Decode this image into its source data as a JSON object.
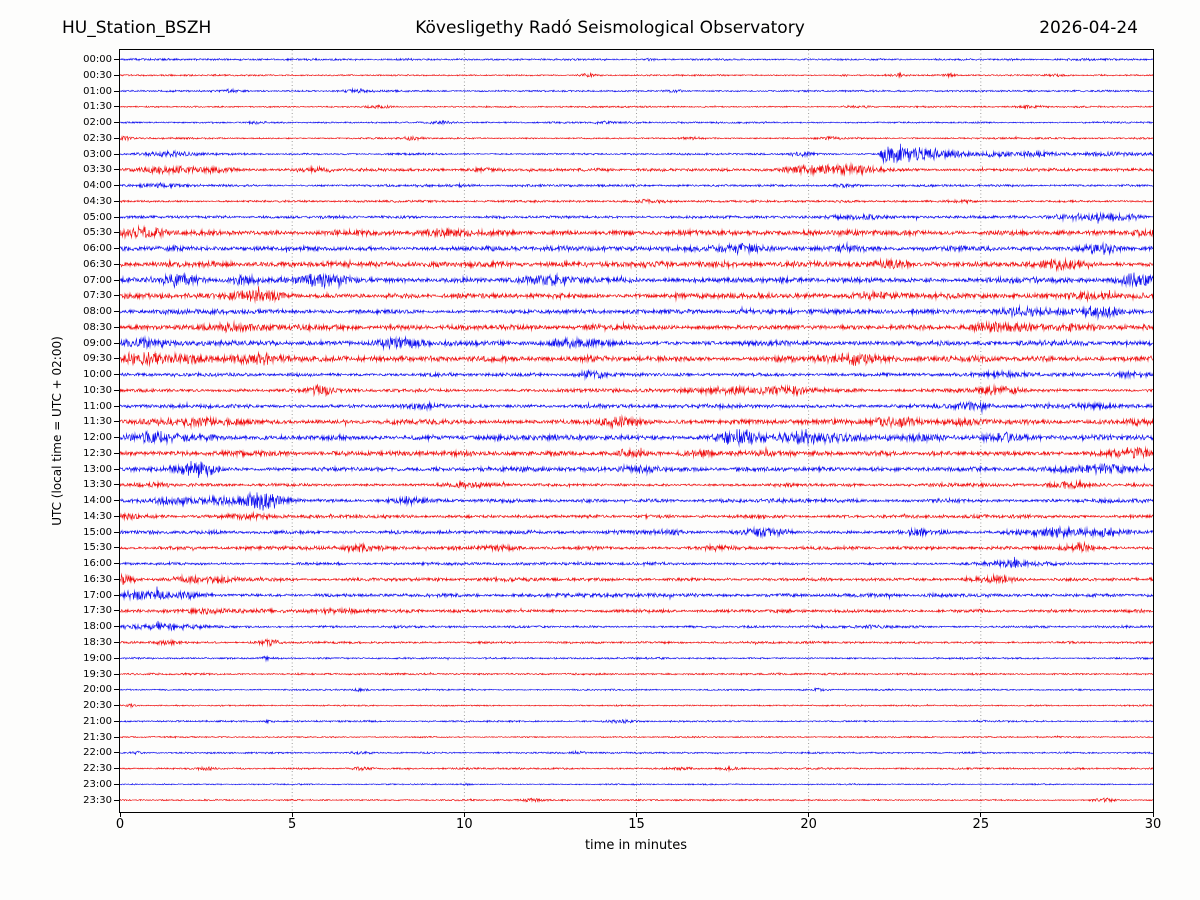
{
  "header": {
    "station": "HU_Station_BSZH",
    "observatory": "Kövesligethy Radó Seismological Observatory",
    "date": "2026-04-24"
  },
  "chart_data": {
    "type": "line",
    "subtype": "helicorder-seismogram",
    "title": "HU_Station_BSZH — Kövesligethy Radó Seismological Observatory — 2026-04-24",
    "xlabel": "time in minutes",
    "ylabel": "UTC (local time = UTC + 02:00)",
    "x_range": [
      0,
      30
    ],
    "x_ticks": [
      0,
      5,
      10,
      15,
      20,
      25,
      30
    ],
    "minutes_per_row": 30,
    "row_order": "top-to-bottom 00:00 to 23:30, one row per 30 minutes, colors alternate blue/red",
    "grid": "vertical dotted lines at 5,10,15,20,25 minutes",
    "colors": {
      "blue": "#0000ee",
      "red": "#ee0000",
      "grid": "#888888",
      "axis": "#000000"
    },
    "notable_event": {
      "row": "03:00",
      "start_minute": 22,
      "description": "largest seismic event: sharp onset near minute 22 with long decaying coda to end of row"
    },
    "events_format": "each event = [minute, amplitude_px, width_min, optional 'q' for quake-style sharp onset + exponential decay]",
    "rows": [
      {
        "label": "00:00",
        "color": "blue",
        "base": 0.9,
        "events": [
          [
            15.4,
            1.5,
            0.15
          ]
        ]
      },
      {
        "label": "00:30",
        "color": "red",
        "base": 0.75,
        "events": [
          [
            13.6,
            1.1,
            0.15
          ],
          [
            21.0,
            1.2,
            0.12
          ],
          [
            22.6,
            1.6,
            0.12
          ],
          [
            24.1,
            1.7,
            0.15
          ],
          [
            27.3,
            1.2,
            0.2
          ]
        ]
      },
      {
        "label": "01:00",
        "color": "blue",
        "base": 0.9,
        "events": [
          [
            3.2,
            1.2,
            0.2
          ],
          [
            6.8,
            1.5,
            0.3
          ],
          [
            16.1,
            1.1,
            0.2
          ]
        ]
      },
      {
        "label": "01:30",
        "color": "red",
        "base": 0.75,
        "events": [
          [
            7.5,
            1.3,
            0.3
          ],
          [
            21.4,
            1.5,
            0.3
          ],
          [
            26.4,
            1.3,
            0.3
          ]
        ]
      },
      {
        "label": "02:00",
        "color": "blue",
        "base": 0.9,
        "events": [
          [
            3.9,
            1.2,
            0.2
          ],
          [
            9.4,
            1.3,
            0.25
          ],
          [
            14.0,
            1.0,
            0.2
          ]
        ]
      },
      {
        "label": "02:30",
        "color": "red",
        "base": 0.85,
        "events": [
          [
            0.15,
            2.2,
            0.15
          ],
          [
            8.5,
            1.2,
            0.2
          ],
          [
            16.6,
            1.3,
            0.3
          ],
          [
            20.6,
            1.2,
            0.2
          ]
        ]
      },
      {
        "label": "03:00",
        "color": "blue",
        "base": 1.0,
        "events": [
          [
            1.6,
            2.0,
            0.6
          ],
          [
            19.7,
            2.2,
            0.25
          ],
          [
            22.0,
            11,
            0.9,
            "q"
          ],
          [
            22.3,
            3,
            5,
            "q"
          ]
        ]
      },
      {
        "label": "03:30",
        "color": "red",
        "base": 1.4,
        "events": [
          [
            1.5,
            3.0,
            0.5
          ],
          [
            2.8,
            2.5,
            0.4
          ],
          [
            5.5,
            2.0,
            0.4
          ],
          [
            10.5,
            1.8,
            0.3
          ],
          [
            19.7,
            3.5,
            0.5
          ],
          [
            20.7,
            3.0,
            0.4
          ],
          [
            21.6,
            3.2,
            0.5
          ]
        ]
      },
      {
        "label": "04:00",
        "color": "blue",
        "base": 1.1,
        "events": [
          [
            1.2,
            2.0,
            0.5
          ],
          [
            9.9,
            1.6,
            0.3
          ],
          [
            21.0,
            1.3,
            0.3
          ]
        ]
      },
      {
        "label": "04:30",
        "color": "red",
        "base": 1.0,
        "events": [
          [
            15.3,
            1.5,
            0.5
          ],
          [
            24.5,
            1.3,
            0.25
          ]
        ]
      },
      {
        "label": "05:00",
        "color": "blue",
        "base": 1.3,
        "events": [
          [
            21.3,
            2.2,
            0.5
          ],
          [
            27.7,
            2.9,
            0.7
          ],
          [
            28.9,
            2.7,
            0.5
          ]
        ]
      },
      {
        "label": "05:30",
        "color": "red",
        "base": 2.6,
        "events": [
          [
            0.5,
            3.5,
            0.6
          ],
          [
            9.8,
            3.0,
            0.4
          ],
          [
            29.7,
            3.2,
            0.3
          ]
        ]
      },
      {
        "label": "06:00",
        "color": "blue",
        "base": 2.5,
        "events": [
          [
            18.0,
            3.2,
            0.5
          ],
          [
            21.2,
            3.4,
            0.4
          ],
          [
            28.4,
            3.0,
            0.4
          ]
        ]
      },
      {
        "label": "06:30",
        "color": "red",
        "base": 2.8,
        "events": [
          [
            22.5,
            3.0,
            0.4
          ],
          [
            27.1,
            3.6,
            0.5
          ]
        ]
      },
      {
        "label": "07:00",
        "color": "blue",
        "base": 2.6,
        "events": [
          [
            1.7,
            6.5,
            0.35
          ],
          [
            3.6,
            4.5,
            0.3
          ],
          [
            6.0,
            3.5,
            0.6
          ],
          [
            12.3,
            3.6,
            0.6
          ],
          [
            29.5,
            3.5,
            0.4
          ]
        ]
      },
      {
        "label": "07:30",
        "color": "red",
        "base": 2.6,
        "events": [
          [
            4.0,
            4.0,
            0.5
          ],
          [
            21.8,
            3.2,
            0.4
          ],
          [
            28.0,
            3.0,
            0.5
          ]
        ]
      },
      {
        "label": "08:00",
        "color": "blue",
        "base": 2.2,
        "events": [
          [
            26.8,
            3.4,
            0.8
          ],
          [
            28.5,
            3.2,
            0.5
          ]
        ]
      },
      {
        "label": "08:30",
        "color": "red",
        "base": 2.6,
        "events": [
          [
            3.5,
            3.4,
            0.5
          ],
          [
            25.5,
            3.8,
            0.6
          ],
          [
            27.7,
            3.4,
            0.5
          ]
        ]
      },
      {
        "label": "09:00",
        "color": "blue",
        "base": 2.6,
        "events": [
          [
            0.7,
            5.0,
            0.5
          ],
          [
            8.0,
            3.4,
            0.5
          ],
          [
            13.3,
            3.2,
            0.5
          ]
        ]
      },
      {
        "label": "09:30",
        "color": "red",
        "base": 2.8,
        "events": [
          [
            0.6,
            5.5,
            0.6
          ],
          [
            1.8,
            4.5,
            0.5
          ],
          [
            4.2,
            4.0,
            0.4
          ],
          [
            21.2,
            4.0,
            0.6
          ]
        ]
      },
      {
        "label": "10:00",
        "color": "blue",
        "base": 1.8,
        "events": [
          [
            13.7,
            2.8,
            0.3
          ],
          [
            25.8,
            2.4,
            0.5
          ],
          [
            29.3,
            2.6,
            0.3
          ]
        ]
      },
      {
        "label": "10:30",
        "color": "red",
        "base": 1.8,
        "events": [
          [
            5.8,
            4.5,
            0.25
          ],
          [
            17.5,
            2.6,
            0.8
          ],
          [
            19.3,
            2.4,
            0.5
          ],
          [
            25.5,
            2.4,
            0.5
          ]
        ]
      },
      {
        "label": "11:00",
        "color": "blue",
        "base": 1.9,
        "events": [
          [
            8.7,
            2.8,
            0.4
          ],
          [
            24.5,
            2.8,
            0.6
          ],
          [
            27.6,
            3.0,
            0.6
          ]
        ]
      },
      {
        "label": "11:30",
        "color": "red",
        "base": 2.5,
        "events": [
          [
            1.8,
            3.6,
            0.7
          ],
          [
            14.4,
            3.2,
            0.4
          ],
          [
            22.5,
            3.4,
            0.4
          ],
          [
            24.5,
            3.0,
            0.4
          ],
          [
            29.6,
            3.6,
            0.3
          ]
        ]
      },
      {
        "label": "12:00",
        "color": "blue",
        "base": 2.6,
        "events": [
          [
            1.0,
            4.0,
            0.5
          ],
          [
            18.1,
            5.5,
            0.4
          ],
          [
            19.9,
            4.0,
            0.4
          ],
          [
            21.0,
            3.6,
            0.4
          ],
          [
            23.2,
            3.8,
            0.5
          ],
          [
            25.6,
            4.0,
            0.5
          ]
        ]
      },
      {
        "label": "12:30",
        "color": "red",
        "base": 2.4,
        "events": [
          [
            14.8,
            3.4,
            0.3
          ],
          [
            16.8,
            3.2,
            0.3
          ],
          [
            29.4,
            3.8,
            0.4
          ]
        ]
      },
      {
        "label": "13:00",
        "color": "blue",
        "base": 2.2,
        "events": [
          [
            2.2,
            5.0,
            0.4
          ],
          [
            15.0,
            3.0,
            0.4
          ],
          [
            27.6,
            3.2,
            0.8
          ],
          [
            29.0,
            3.0,
            0.4
          ]
        ]
      },
      {
        "label": "13:30",
        "color": "red",
        "base": 1.8,
        "events": [
          [
            1.0,
            2.6,
            0.4
          ],
          [
            10.0,
            2.4,
            0.4
          ],
          [
            27.5,
            2.2,
            0.4
          ]
        ]
      },
      {
        "label": "14:00",
        "color": "blue",
        "base": 1.8,
        "events": [
          [
            1.5,
            2.8,
            0.4
          ],
          [
            3.0,
            3.5,
            0.5
          ],
          [
            3.9,
            6.5,
            0.3
          ],
          [
            4.5,
            4.0,
            0.4
          ],
          [
            8.3,
            2.6,
            0.3
          ]
        ]
      },
      {
        "label": "14:30",
        "color": "red",
        "base": 1.7,
        "events": [
          [
            0.4,
            2.6,
            0.5
          ],
          [
            3.8,
            2.4,
            0.5
          ]
        ]
      },
      {
        "label": "15:00",
        "color": "blue",
        "base": 1.8,
        "events": [
          [
            16.0,
            2.8,
            0.4
          ],
          [
            18.6,
            2.8,
            0.4
          ],
          [
            23.2,
            2.6,
            0.4
          ],
          [
            27.0,
            3.0,
            0.6
          ],
          [
            28.8,
            3.0,
            0.5
          ]
        ]
      },
      {
        "label": "15:30",
        "color": "red",
        "base": 1.7,
        "events": [
          [
            7.0,
            2.8,
            0.4
          ],
          [
            11.0,
            2.6,
            0.4
          ],
          [
            17.3,
            2.8,
            0.4
          ],
          [
            27.9,
            3.4,
            0.3
          ]
        ]
      },
      {
        "label": "16:00",
        "color": "blue",
        "base": 1.4,
        "events": [
          [
            26.3,
            2.6,
            0.8
          ]
        ]
      },
      {
        "label": "16:30",
        "color": "red",
        "base": 1.7,
        "events": [
          [
            0.15,
            5.0,
            0.2
          ],
          [
            2.0,
            2.8,
            0.4
          ],
          [
            2.9,
            2.6,
            0.3
          ],
          [
            25.3,
            3.8,
            0.4
          ]
        ]
      },
      {
        "label": "17:00",
        "color": "blue",
        "base": 1.7,
        "events": [
          [
            0.8,
            2.8,
            0.6
          ],
          [
            2.0,
            2.4,
            0.4
          ]
        ]
      },
      {
        "label": "17:30",
        "color": "red",
        "base": 1.5,
        "events": [
          [
            2.5,
            2.4,
            1.2
          ],
          [
            6.5,
            2.2,
            0.6
          ]
        ]
      },
      {
        "label": "18:00",
        "color": "blue",
        "base": 1.2,
        "events": [
          [
            1.2,
            2.8,
            1.0
          ],
          [
            22.0,
            1.6,
            0.3
          ]
        ]
      },
      {
        "label": "18:30",
        "color": "red",
        "base": 1.1,
        "events": [
          [
            1.4,
            2.2,
            0.3
          ],
          [
            4.3,
            2.8,
            0.25
          ]
        ]
      },
      {
        "label": "19:00",
        "color": "blue",
        "base": 0.9,
        "events": [
          [
            4.2,
            1.6,
            0.1
          ]
        ]
      },
      {
        "label": "19:30",
        "color": "red",
        "base": 0.9,
        "events": []
      },
      {
        "label": "20:00",
        "color": "blue",
        "base": 0.8,
        "events": [
          [
            7.0,
            1.4,
            0.15
          ],
          [
            20.3,
            1.2,
            0.15
          ]
        ]
      },
      {
        "label": "20:30",
        "color": "red",
        "base": 0.8,
        "events": [
          [
            0.3,
            1.6,
            0.1
          ]
        ]
      },
      {
        "label": "21:00",
        "color": "blue",
        "base": 0.8,
        "events": [
          [
            4.3,
            1.2,
            0.1
          ],
          [
            14.6,
            2.2,
            0.3
          ],
          [
            25.0,
            1.2,
            0.1
          ]
        ]
      },
      {
        "label": "21:30",
        "color": "red",
        "base": 0.7,
        "events": []
      },
      {
        "label": "22:00",
        "color": "blue",
        "base": 0.8,
        "events": [
          [
            0.5,
            1.8,
            0.15
          ],
          [
            7.0,
            1.4,
            0.2
          ],
          [
            13.3,
            1.2,
            0.15
          ]
        ]
      },
      {
        "label": "22:30",
        "color": "red",
        "base": 0.9,
        "events": [
          [
            2.5,
            1.6,
            0.2
          ],
          [
            7.0,
            1.4,
            0.2
          ],
          [
            16.3,
            1.6,
            0.25
          ],
          [
            17.6,
            1.4,
            0.2
          ]
        ]
      },
      {
        "label": "23:00",
        "color": "blue",
        "base": 0.7,
        "events": [
          [
            10.0,
            1.2,
            0.15
          ]
        ]
      },
      {
        "label": "23:30",
        "color": "red",
        "base": 0.8,
        "events": [
          [
            12.0,
            1.2,
            0.2
          ],
          [
            28.6,
            1.3,
            0.2
          ]
        ]
      }
    ]
  }
}
